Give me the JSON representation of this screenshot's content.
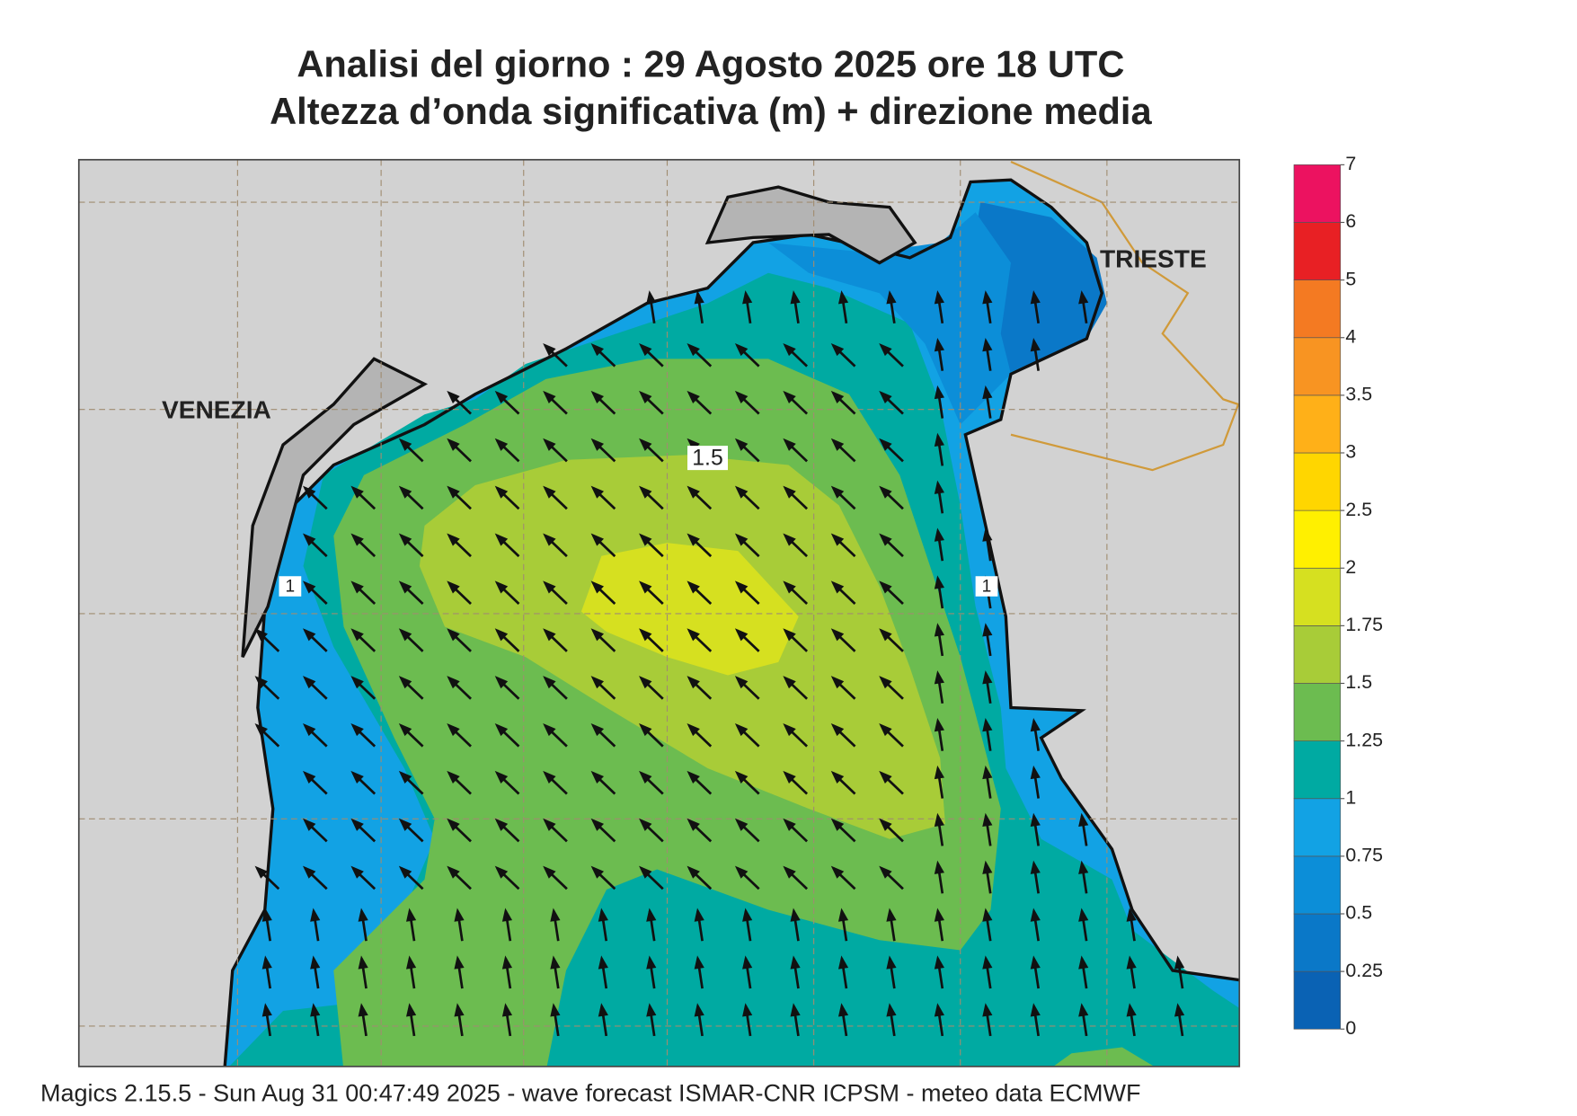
{
  "title": "Analisi del giorno :  29   Agosto  2025   ore 18 UTC",
  "subtitle": "Altezza d’onda significativa (m) + direzione media",
  "places": [
    "VENEZIA",
    "TRIESTE"
  ],
  "contour_labels": [
    1.5,
    1,
    1
  ],
  "footer": "Magics 2.15.5 - Sun Aug 31 00:47:49 2025 - wave forecast  ISMAR-CNR  ICPSM - meteo data   ECMWF",
  "colorbar": {
    "levels": [
      0,
      0.25,
      0.5,
      0.75,
      1,
      1.25,
      1.5,
      1.75,
      2,
      2.5,
      3,
      3.5,
      4,
      5,
      6,
      7
    ],
    "colors": [
      "#0a62b4",
      "#0a78c8",
      "#0c8ed8",
      "#12a2e4",
      "#00aaa2",
      "#6cbc50",
      "#a8cc38",
      "#d6e020",
      "#fff000",
      "#ffd600",
      "#ffb018",
      "#f89422",
      "#f47a22",
      "#e82024",
      "#ec1260"
    ]
  }
}
